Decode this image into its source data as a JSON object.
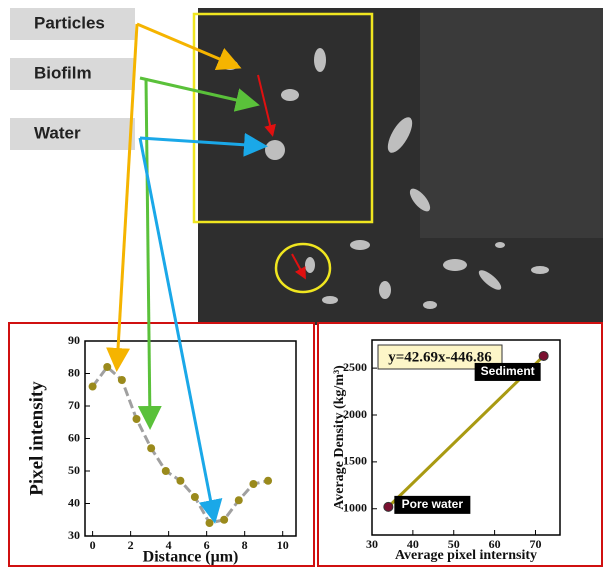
{
  "labels": [
    "Particles",
    "Biofilm",
    "Water"
  ],
  "chart_data": [
    {
      "type": "line",
      "xlabel": "Distance (μm)",
      "ylabel": "Pixel intensity",
      "x": [
        0,
        0.77,
        1.54,
        2.31,
        3.08,
        3.85,
        4.62,
        5.38,
        6.15,
        6.92,
        7.69,
        8.46,
        9.23
      ],
      "values": [
        76,
        82,
        78,
        66,
        57,
        50,
        47,
        42,
        34,
        35,
        41,
        46,
        47
      ],
      "color": "#a0a0a0",
      "marker_color": "#9a8a1c",
      "xlim": [
        -0.4,
        10.7
      ],
      "xticks": [
        0,
        2,
        4,
        6,
        8,
        10
      ],
      "ylim": [
        30,
        90
      ],
      "yticks": [
        30,
        40,
        50,
        60,
        70,
        80,
        90
      ]
    },
    {
      "type": "scatter",
      "xlabel": "Average pixel internsity",
      "ylabel": "Average Density (kg/m³)",
      "annotation": "y=42.69x-446.86",
      "x": [
        34,
        72
      ],
      "values": [
        1020,
        2630
      ],
      "point_labels": [
        "Pore water",
        "Sediment"
      ],
      "color": "#a99a12",
      "marker_color": "#7a1030",
      "xlim": [
        30,
        76
      ],
      "xticks": [
        30,
        40,
        50,
        60,
        70
      ],
      "ylim": [
        720,
        2800
      ],
      "yticks": [
        1000,
        1500,
        2000,
        2500
      ]
    }
  ]
}
